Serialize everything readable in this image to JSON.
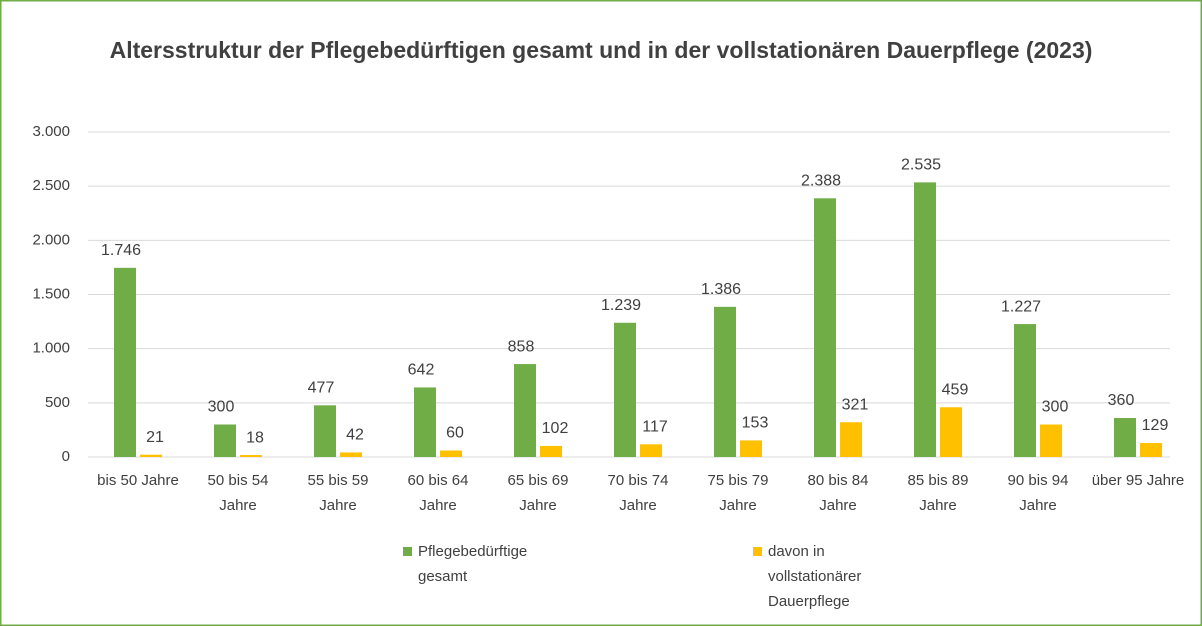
{
  "chart_data": {
    "type": "bar",
    "title": "Altersstruktur der Pflegebedürftigen gesamt und in der vollstationären Dauerpflege (2023)",
    "categories": [
      "bis 50 Jahre",
      "50 bis 54 Jahre",
      "55 bis 59 Jahre",
      "60 bis 64 Jahre",
      "65 bis 69 Jahre",
      "70 bis 74 Jahre",
      "75 bis 79 Jahre",
      "80 bis 84 Jahre",
      "85 bis 89 Jahre",
      "90 bis 94 Jahre",
      "über 95 Jahre"
    ],
    "series": [
      {
        "name": "Pflegebedürftige gesamt",
        "color": "#70ad47",
        "values": [
          1746,
          300,
          477,
          642,
          858,
          1239,
          1386,
          2388,
          2535,
          1227,
          360
        ],
        "value_labels": [
          "1.746",
          "300",
          "477",
          "642",
          "858",
          "1.239",
          "1.386",
          "2.388",
          "2.535",
          "1.227",
          "360"
        ]
      },
      {
        "name": "davon in vollstationärer Dauerpflege",
        "color": "#ffc000",
        "values": [
          21,
          18,
          42,
          60,
          102,
          117,
          153,
          321,
          459,
          300,
          129
        ],
        "value_labels": [
          "21",
          "18",
          "42",
          "60",
          "102",
          "117",
          "153",
          "321",
          "459",
          "300",
          "129"
        ]
      }
    ],
    "ylim": [
      0,
      3000
    ],
    "yticks": [
      0,
      500,
      {
        "value": 1000,
        "label": "1.000"
      },
      {
        "value": 1500,
        "label": "1.500"
      },
      {
        "value": 2000,
        "label": "2.000"
      },
      {
        "value": 2500,
        "label": "2.500"
      },
      {
        "value": 3000,
        "label": "3.000"
      }
    ],
    "grid": true,
    "legend": "bottom"
  }
}
